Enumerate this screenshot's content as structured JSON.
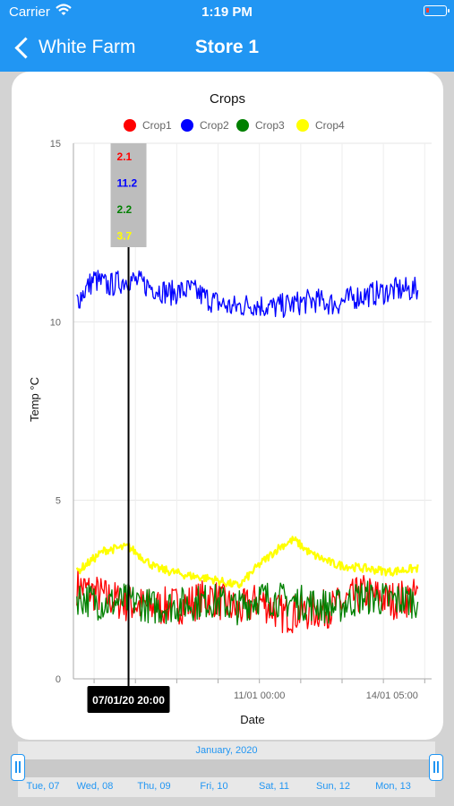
{
  "status_bar": {
    "carrier": "Carrier",
    "time": "1:19 PM"
  },
  "nav": {
    "back_label": "White Farm",
    "title": "Store 1"
  },
  "chart_data": {
    "type": "line",
    "title": "Crops",
    "xlabel": "Date",
    "ylabel": "Temp °C",
    "ylim": [
      0,
      15
    ],
    "yticks": [
      0,
      5,
      10,
      15
    ],
    "x_range": [
      "2020-01-06T12:00",
      "2020-01-15T04:00"
    ],
    "xtick_labels": [
      {
        "date": "2020-01-07T20:00",
        "label": "07/01/20 20:00",
        "highlighted": true
      },
      {
        "date": "2020-01-11T00:00",
        "label": "11/01 00:00"
      },
      {
        "date": "2020-01-14T05:00",
        "label": "14/01 05:00"
      }
    ],
    "legend_position": "top-center",
    "grid": true,
    "series": [
      {
        "name": "Crop1",
        "color": "#ff0000",
        "x": [
          "2020-01-06T14:00",
          "2020-01-07T06:00",
          "2020-01-07T20:00",
          "2020-01-08T12:00",
          "2020-01-09T06:00",
          "2020-01-09T20:00",
          "2020-01-10T12:00",
          "2020-01-11T00:00",
          "2020-01-11T14:00",
          "2020-01-12T06:00",
          "2020-01-12T20:00",
          "2020-01-13T12:00",
          "2020-01-14T04:00",
          "2020-01-14T20:00"
        ],
        "values": [
          2.6,
          2.3,
          2.1,
          2.0,
          2.1,
          2.3,
          1.9,
          2.2,
          1.8,
          1.9,
          2.0,
          2.4,
          2.2,
          2.3
        ]
      },
      {
        "name": "Crop2",
        "color": "#0000ff",
        "x": [
          "2020-01-06T14:00",
          "2020-01-07T00:00",
          "2020-01-07T08:00",
          "2020-01-07T20:00",
          "2020-01-08T08:00",
          "2020-01-08T20:00",
          "2020-01-09T08:00",
          "2020-01-09T20:00",
          "2020-01-10T08:00",
          "2020-01-10T20:00",
          "2020-01-11T08:00",
          "2020-01-11T20:00",
          "2020-01-12T08:00",
          "2020-01-12T20:00",
          "2020-01-13T08:00",
          "2020-01-13T20:00",
          "2020-01-14T08:00",
          "2020-01-14T20:00"
        ],
        "values": [
          10.6,
          11.2,
          11.0,
          11.2,
          11.0,
          10.8,
          10.9,
          10.6,
          10.4,
          10.5,
          10.4,
          10.5,
          10.6,
          10.5,
          10.7,
          10.8,
          10.9,
          10.9
        ]
      },
      {
        "name": "Crop3",
        "color": "#008000",
        "x": [
          "2020-01-06T14:00",
          "2020-01-07T06:00",
          "2020-01-07T20:00",
          "2020-01-08T12:00",
          "2020-01-09T06:00",
          "2020-01-09T20:00",
          "2020-01-10T12:00",
          "2020-01-11T00:00",
          "2020-01-11T14:00",
          "2020-01-12T06:00",
          "2020-01-12T20:00",
          "2020-01-13T12:00",
          "2020-01-14T04:00",
          "2020-01-14T20:00"
        ],
        "values": [
          2.3,
          2.1,
          2.2,
          2.0,
          2.1,
          2.2,
          2.0,
          2.3,
          2.2,
          2.1,
          2.0,
          2.3,
          2.2,
          2.2
        ]
      },
      {
        "name": "Crop4",
        "color": "#ffff00",
        "x": [
          "2020-01-06T14:00",
          "2020-01-07T06:00",
          "2020-01-07T20:00",
          "2020-01-08T12:00",
          "2020-01-09T06:00",
          "2020-01-09T20:00",
          "2020-01-10T12:00",
          "2020-01-11T00:00",
          "2020-01-11T12:00",
          "2020-01-11T20:00",
          "2020-01-12T06:00",
          "2020-01-12T20:00",
          "2020-01-13T12:00",
          "2020-01-14T04:00",
          "2020-01-14T20:00"
        ],
        "values": [
          3.0,
          3.6,
          3.7,
          3.1,
          2.9,
          2.8,
          2.6,
          3.2,
          3.7,
          3.9,
          3.5,
          3.2,
          3.1,
          3.0,
          3.1
        ]
      }
    ],
    "tooltip": {
      "date": "2020-01-07T20:00",
      "values": [
        "2.1",
        "11.2",
        "2.2",
        "3.7"
      ]
    }
  },
  "timeline": {
    "month": "January, 2020",
    "days": [
      "Tue, 07",
      "Wed, 08",
      "Thu, 09",
      "Fri, 10",
      "Sat, 11",
      "Sun, 12",
      "Mon, 13"
    ]
  }
}
